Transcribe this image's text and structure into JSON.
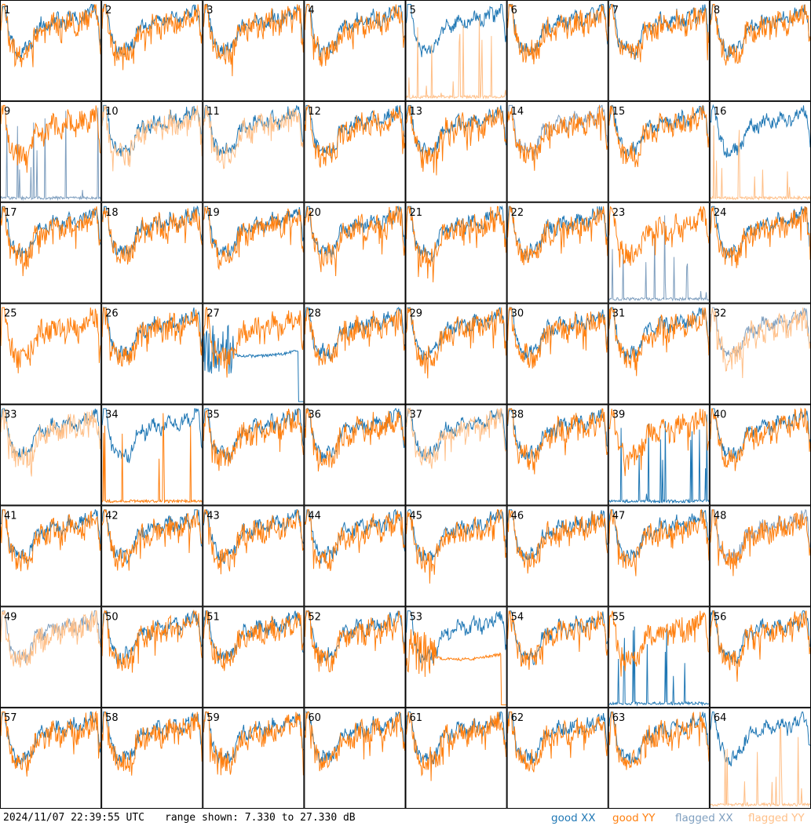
{
  "chart_data": {
    "type": "line",
    "layout": "small-multiples",
    "rows": 8,
    "cols": 8,
    "panel_labels": [
      "1",
      "2",
      "3",
      "4",
      "5",
      "6",
      "7",
      "8",
      "9",
      "10",
      "11",
      "12",
      "13",
      "14",
      "15",
      "16",
      "17",
      "18",
      "19",
      "20",
      "21",
      "22",
      "23",
      "24",
      "25",
      "26",
      "27",
      "28",
      "29",
      "30",
      "31",
      "32",
      "33",
      "34",
      "35",
      "36",
      "37",
      "38",
      "39",
      "40",
      "41",
      "42",
      "43",
      "44",
      "45",
      "46",
      "47",
      "48",
      "49",
      "50",
      "51",
      "52",
      "53",
      "54",
      "55",
      "56",
      "57",
      "58",
      "59",
      "60",
      "61",
      "62",
      "63",
      "64"
    ],
    "ylim": [
      7.33,
      27.33
    ],
    "yunit": "dB",
    "series_legend": [
      {
        "name": "good XX",
        "color": "#1f77b4"
      },
      {
        "name": "good YY",
        "color": "#ff7f0e"
      },
      {
        "name": "flagged XX",
        "color": "#7f9fbf"
      },
      {
        "name": "flagged YY",
        "color": "#ffbf87"
      }
    ],
    "panel_status": {
      "5": {
        "xx": "good",
        "yy": "flagged",
        "yy_style": "spikes"
      },
      "9": {
        "xx": "flagged",
        "yy": "good",
        "xx_style": "spikes"
      },
      "10": {
        "xx": "good",
        "yy": "flagged"
      },
      "11": {
        "xx": "good",
        "yy": "flagged"
      },
      "14": {
        "xx": "flagged",
        "yy": "good"
      },
      "16": {
        "xx": "good",
        "yy": "flagged",
        "yy_style": "spikes"
      },
      "23": {
        "xx": "flagged",
        "yy": "good",
        "xx_style": "spikes"
      },
      "25": {
        "xx": "hidden",
        "yy": "good"
      },
      "27": {
        "xx": "good",
        "yy": "good",
        "xx_style": "dropout"
      },
      "32": {
        "xx": "flagged",
        "yy": "flagged"
      },
      "33": {
        "xx": "good",
        "yy": "flagged"
      },
      "34": {
        "xx": "good",
        "yy": "good",
        "yy_style": "spikes"
      },
      "37": {
        "xx": "good",
        "yy": "flagged"
      },
      "39": {
        "xx": "good",
        "yy": "good",
        "xx_style": "spikes"
      },
      "48": {
        "xx": "flagged",
        "yy": "good"
      },
      "49": {
        "xx": "flagged",
        "yy": "flagged"
      },
      "53": {
        "xx": "good",
        "yy": "good",
        "yy_style": "dropout"
      },
      "55": {
        "xx": "good",
        "yy": "good",
        "xx_style": "spikes"
      },
      "64": {
        "xx": "good",
        "yy": "flagged",
        "yy_style": "spikes"
      }
    }
  },
  "footer": {
    "timestamp": "2024/11/07 22:39:55 UTC",
    "range_text": "range shown: 7.330 to 27.330 dB",
    "legend": [
      {
        "label": "good XX",
        "color": "#1f77b4"
      },
      {
        "label": "good YY",
        "color": "#ff7f0e"
      },
      {
        "label": "flagged XX",
        "color": "#7f9fbf"
      },
      {
        "label": "flagged YY",
        "color": "#ffbf87"
      }
    ]
  }
}
